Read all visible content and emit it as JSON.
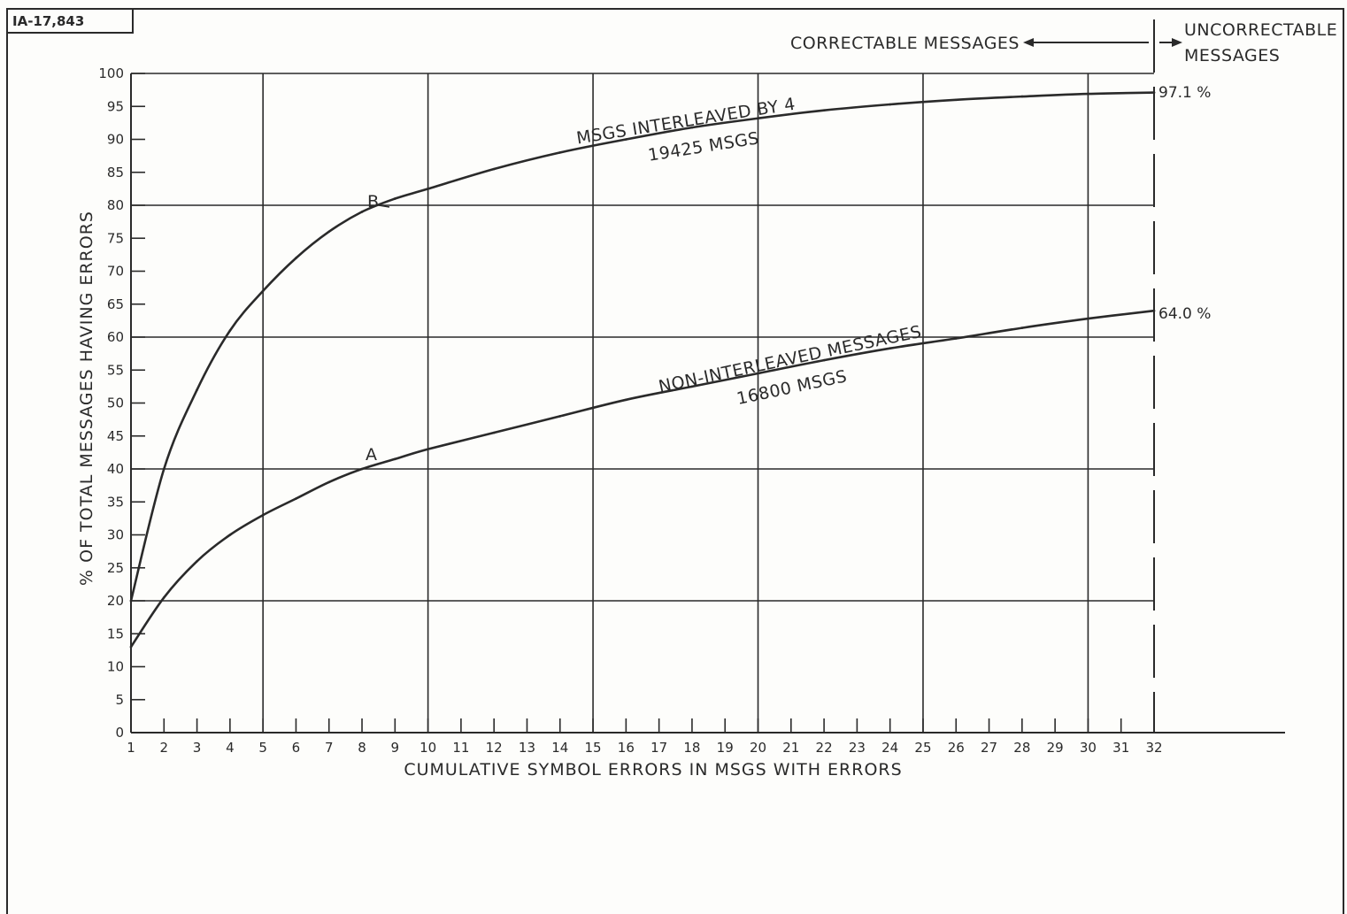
{
  "figure_tag": "IA-17,843",
  "regions": {
    "correctable": "CORRECTABLE MESSAGES",
    "uncorrectable_line1": "UNCORRECTABLE",
    "uncorrectable_line2": "MESSAGES"
  },
  "curve_labels": {
    "b_line1": "MSGS INTERLEAVED BY 4",
    "b_line2": "19425 MSGS",
    "a_line1": "NON-INTERLEAVED MESSAGES",
    "a_line2": "16800 MSGS",
    "b_marker": "B",
    "a_marker": "A"
  },
  "end_values": {
    "b": "97.1 %",
    "a": "64.0 %"
  },
  "colors": {
    "ink": "#2a2a2a",
    "paper": "#fdfdfb"
  },
  "chart_data": {
    "type": "line",
    "xlabel": "CUMULATIVE SYMBOL ERRORS IN MSGS WITH ERRORS",
    "ylabel": "% OF TOTAL MESSAGES HAVING ERRORS",
    "xlim": [
      1,
      32
    ],
    "ylim": [
      0,
      100
    ],
    "x_ticks": [
      1,
      2,
      3,
      4,
      5,
      6,
      7,
      8,
      9,
      10,
      11,
      12,
      13,
      14,
      15,
      16,
      17,
      18,
      19,
      20,
      21,
      22,
      23,
      24,
      25,
      26,
      27,
      28,
      29,
      30,
      31,
      32
    ],
    "y_ticks": [
      0,
      5,
      10,
      15,
      20,
      25,
      30,
      35,
      40,
      45,
      50,
      55,
      60,
      65,
      70,
      75,
      80,
      85,
      90,
      95,
      100
    ],
    "x_gridlines": [
      5,
      10,
      15,
      20,
      25,
      30
    ],
    "y_gridlines": [
      20,
      40,
      60,
      80,
      100
    ],
    "boundary_x": 32,
    "grid": true,
    "series": [
      {
        "name": "MSGS INTERLEAVED BY 4",
        "x": [
          1,
          2,
          3,
          4,
          5,
          6,
          7,
          8,
          9,
          10,
          12,
          14,
          16,
          18,
          20,
          22,
          24,
          26,
          28,
          30,
          32
        ],
        "values": [
          20,
          40,
          52,
          61,
          67,
          72,
          76,
          79,
          81,
          82.5,
          85.5,
          88,
          90,
          91.8,
          93.2,
          94.4,
          95.3,
          96,
          96.5,
          96.9,
          97.1
        ]
      },
      {
        "name": "NON-INTERLEAVED MESSAGES",
        "x": [
          1,
          2,
          3,
          4,
          5,
          6,
          7,
          8,
          9,
          10,
          12,
          14,
          16,
          18,
          20,
          22,
          24,
          26,
          28,
          30,
          32
        ],
        "values": [
          13,
          20.5,
          26,
          30,
          33,
          35.5,
          38,
          40,
          41.5,
          43,
          45.5,
          48,
          50.5,
          52.5,
          54.5,
          56.5,
          58.3,
          59.8,
          61.4,
          62.8,
          64
        ]
      }
    ]
  }
}
